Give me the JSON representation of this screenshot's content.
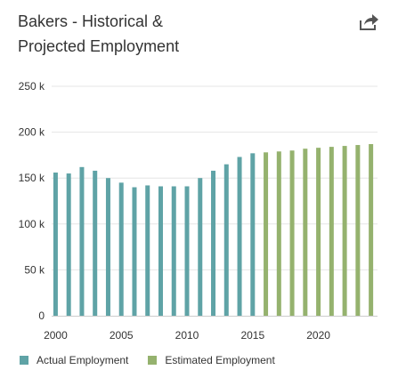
{
  "header": {
    "title_line1": "Bakers - Historical &",
    "title_line2": "Projected Employment",
    "share_icon": "share-icon"
  },
  "colors": {
    "actual": "#5fa3a6",
    "estimated": "#95b26e",
    "grid": "#e6e6e6",
    "tick_text": "#333333"
  },
  "chart_data": {
    "type": "bar",
    "title": "Bakers - Historical & Projected Employment",
    "xlabel": "",
    "ylabel": "",
    "ylim": [
      0,
      250000
    ],
    "y_ticks": [
      {
        "value": 0,
        "label": "0"
      },
      {
        "value": 50000,
        "label": "50 k"
      },
      {
        "value": 100000,
        "label": "100 k"
      },
      {
        "value": 150000,
        "label": "150 k"
      },
      {
        "value": 200000,
        "label": "200 k"
      },
      {
        "value": 250000,
        "label": "250 k"
      }
    ],
    "x_ticks": [
      2000,
      2005,
      2010,
      2015,
      2020
    ],
    "x_range": [
      1999.7,
      2024.5
    ],
    "grid": true,
    "legend_position": "bottom-left",
    "series": [
      {
        "name": "Actual Employment",
        "years": [
          2000,
          2001,
          2002,
          2003,
          2004,
          2005,
          2006,
          2007,
          2008,
          2009,
          2010,
          2011,
          2012,
          2013,
          2014,
          2015
        ],
        "values": [
          156000,
          155000,
          162000,
          158000,
          150000,
          145000,
          140000,
          142000,
          141000,
          141000,
          141000,
          150000,
          158000,
          165000,
          173000,
          177000
        ]
      },
      {
        "name": "Estimated Employment",
        "years": [
          2016,
          2017,
          2018,
          2019,
          2020,
          2021,
          2022,
          2023,
          2024
        ],
        "values": [
          178000,
          179000,
          180000,
          182000,
          183000,
          184000,
          185000,
          186000,
          187000
        ]
      }
    ]
  }
}
